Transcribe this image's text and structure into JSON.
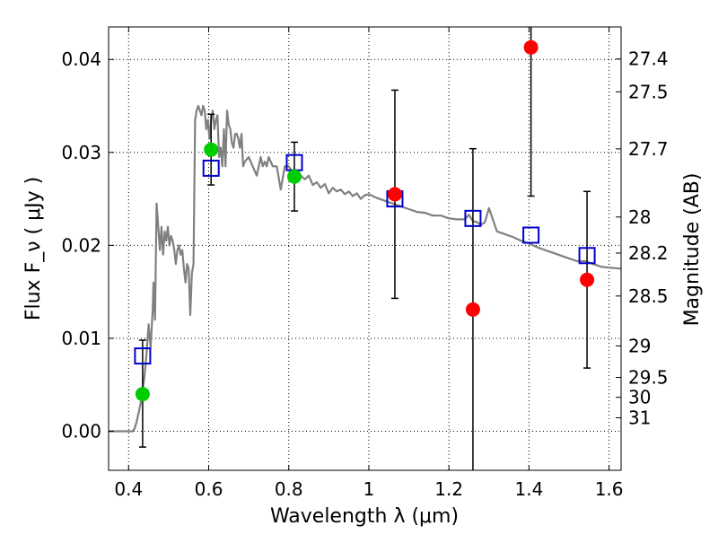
{
  "chart_data": {
    "type": "scatter",
    "xlabel": "Wavelength  λ (μm)",
    "ylabel": "Flux  F_ν  ( μJy )",
    "ylabel_right": "Magnitude (AB)",
    "xlim": [
      0.35,
      1.63
    ],
    "ylim": [
      -0.0042,
      0.0435
    ],
    "grid": true,
    "x_ticks": [
      0.4,
      0.6,
      0.8,
      1.0,
      1.2,
      1.4,
      1.6
    ],
    "x_tick_labels": [
      "0.4",
      "0.6",
      "0.8",
      "1",
      "1.2",
      "1.4",
      "1.6"
    ],
    "y_ticks": [
      0.0,
      0.01,
      0.02,
      0.03,
      0.04
    ],
    "y_tick_labels": [
      "0.00",
      "0.01",
      "0.02",
      "0.03",
      "0.04"
    ],
    "right_ticks": [
      {
        "label": "27.4",
        "flux": 0.04005
      },
      {
        "label": "27.5",
        "flux": 0.03652
      },
      {
        "label": "27.7",
        "flux": 0.03038
      },
      {
        "label": "28",
        "flux": 0.02305
      },
      {
        "label": "28.2",
        "flux": 0.01917
      },
      {
        "label": "28.5",
        "flux": 0.01455
      },
      {
        "label": "29",
        "flux": 0.00918
      },
      {
        "label": "29.5",
        "flux": 0.00579
      },
      {
        "label": "30",
        "flux": 0.00365
      },
      {
        "label": "31",
        "flux": 0.00145
      }
    ],
    "colors": {
      "model": "#808080",
      "green": "#00cc00",
      "red": "#ff0000",
      "square": "#0000cc",
      "errorbar": "#000000"
    },
    "series": [
      {
        "kind": "model",
        "x": [
          0.35,
          0.41,
          0.415,
          0.42,
          0.425,
          0.43,
          0.435,
          0.44,
          0.445,
          0.45,
          0.455,
          0.46,
          0.462,
          0.466,
          0.47,
          0.474,
          0.478,
          0.482,
          0.486,
          0.49,
          0.494,
          0.498,
          0.502,
          0.506,
          0.51,
          0.514,
          0.518,
          0.522,
          0.526,
          0.53,
          0.534,
          0.538,
          0.542,
          0.546,
          0.55,
          0.554,
          0.558,
          0.562,
          0.566,
          0.57,
          0.574,
          0.578,
          0.582,
          0.586,
          0.59,
          0.594,
          0.598,
          0.602,
          0.606,
          0.61,
          0.614,
          0.618,
          0.622,
          0.626,
          0.63,
          0.634,
          0.638,
          0.642,
          0.646,
          0.65,
          0.654,
          0.658,
          0.662,
          0.666,
          0.67,
          0.674,
          0.678,
          0.682,
          0.686,
          0.69,
          0.7,
          0.71,
          0.72,
          0.73,
          0.735,
          0.74,
          0.745,
          0.75,
          0.76,
          0.77,
          0.78,
          0.79,
          0.8,
          0.81,
          0.82,
          0.83,
          0.84,
          0.85,
          0.86,
          0.87,
          0.88,
          0.89,
          0.9,
          0.91,
          0.92,
          0.93,
          0.94,
          0.95,
          0.96,
          0.97,
          0.98,
          0.99,
          1.0,
          1.02,
          1.04,
          1.06,
          1.08,
          1.1,
          1.12,
          1.14,
          1.16,
          1.18,
          1.2,
          1.22,
          1.24,
          1.25,
          1.26,
          1.27,
          1.28,
          1.29,
          1.3,
          1.32,
          1.34,
          1.36,
          1.38,
          1.4,
          1.42,
          1.44,
          1.46,
          1.48,
          1.5,
          1.52,
          1.54,
          1.56,
          1.58,
          1.6,
          1.63
        ],
        "y": [
          0.0,
          0.0,
          0.0003,
          0.001,
          0.002,
          0.003,
          0.0045,
          0.006,
          0.0085,
          0.0115,
          0.009,
          0.013,
          0.016,
          0.012,
          0.0245,
          0.022,
          0.0195,
          0.022,
          0.019,
          0.0215,
          0.0205,
          0.022,
          0.02,
          0.021,
          0.0205,
          0.0195,
          0.018,
          0.0195,
          0.02,
          0.019,
          0.0195,
          0.0175,
          0.016,
          0.018,
          0.0175,
          0.0125,
          0.017,
          0.018,
          0.0335,
          0.0345,
          0.035,
          0.0345,
          0.034,
          0.035,
          0.0345,
          0.0325,
          0.0335,
          0.0315,
          0.0335,
          0.0345,
          0.0325,
          0.0335,
          0.034,
          0.0295,
          0.0305,
          0.0285,
          0.0325,
          0.0285,
          0.0345,
          0.033,
          0.0325,
          0.031,
          0.0305,
          0.032,
          0.032,
          0.0315,
          0.0305,
          0.032,
          0.0285,
          0.029,
          0.0295,
          0.0285,
          0.0275,
          0.0295,
          0.0285,
          0.029,
          0.0285,
          0.0295,
          0.0285,
          0.0285,
          0.026,
          0.0285,
          0.0285,
          0.0278,
          0.0275,
          0.0275,
          0.0271,
          0.0275,
          0.0265,
          0.0268,
          0.0262,
          0.0266,
          0.0256,
          0.0262,
          0.0258,
          0.026,
          0.0255,
          0.0258,
          0.0253,
          0.0256,
          0.025,
          0.0254,
          0.0255,
          0.0251,
          0.0248,
          0.0245,
          0.0242,
          0.0239,
          0.0236,
          0.0235,
          0.0232,
          0.0232,
          0.0229,
          0.0228,
          0.0228,
          0.0233,
          0.0226,
          0.0225,
          0.0222,
          0.0225,
          0.024,
          0.0215,
          0.0212,
          0.0209,
          0.0205,
          0.0202,
          0.0198,
          0.0195,
          0.0192,
          0.0189,
          0.0186,
          0.0183,
          0.0183,
          0.018,
          0.0177,
          0.0176,
          0.0175
        ]
      },
      {
        "kind": "green-points",
        "points": [
          {
            "x": 0.435,
            "y": 0.004,
            "yerr_low": 0.0057,
            "yerr_high": 0.0058
          },
          {
            "x": 0.606,
            "y": 0.0303,
            "yerr_low": 0.0038,
            "yerr_high": 0.0038
          },
          {
            "x": 0.814,
            "y": 0.0274,
            "yerr_low": 0.0037,
            "yerr_high": 0.0037
          }
        ]
      },
      {
        "kind": "red-points",
        "points": [
          {
            "x": 1.065,
            "y": 0.0255,
            "yerr_low": 0.0112,
            "yerr_high": 0.0112
          },
          {
            "x": 1.26,
            "y": 0.0131,
            "yerr_low": 0.0175,
            "yerr_high": 0.0173
          },
          {
            "x": 1.405,
            "y": 0.0413,
            "yerr_low": 0.016,
            "yerr_high": 0.016
          },
          {
            "x": 1.545,
            "y": 0.0163,
            "yerr_low": 0.0095,
            "yerr_high": 0.0095
          }
        ]
      },
      {
        "kind": "model-band-squares",
        "points": [
          {
            "x": 0.435,
            "y": 0.0081
          },
          {
            "x": 0.606,
            "y": 0.0283
          },
          {
            "x": 0.814,
            "y": 0.0289
          },
          {
            "x": 1.065,
            "y": 0.025
          },
          {
            "x": 1.26,
            "y": 0.0229
          },
          {
            "x": 1.405,
            "y": 0.0211
          },
          {
            "x": 1.545,
            "y": 0.0189
          }
        ]
      }
    ]
  }
}
